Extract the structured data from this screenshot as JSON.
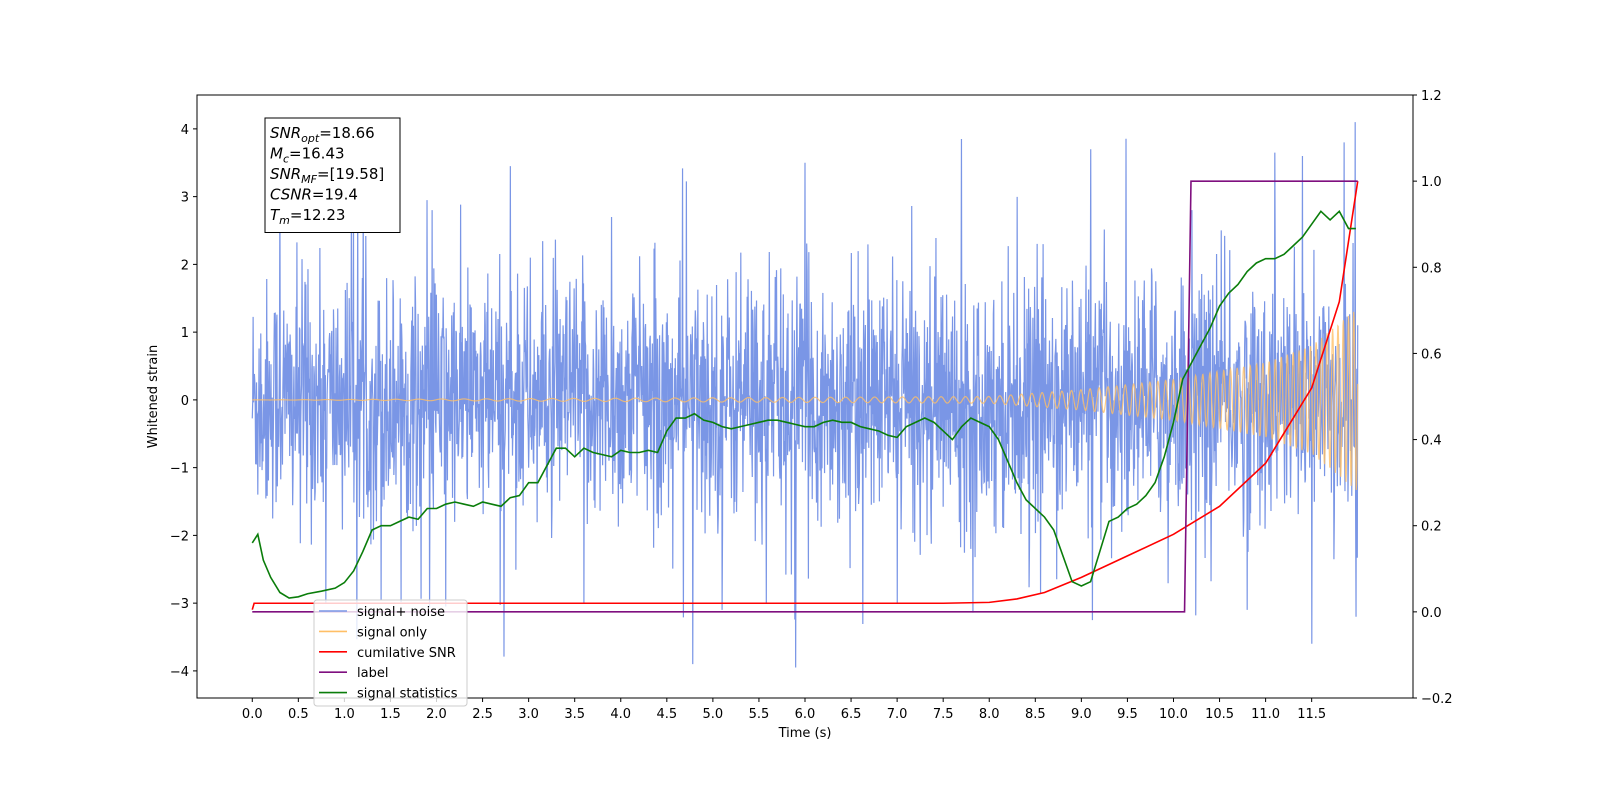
{
  "chart_data": {
    "type": "line",
    "title": "",
    "xlabel": "Time (s)",
    "ylabel": "Whitened strain",
    "ylabel_right": "",
    "xlim": [
      -0.6,
      12.6
    ],
    "ylim": [
      -4.4,
      4.5
    ],
    "ylim_right": [
      -0.2,
      1.2
    ],
    "x_ticks": [
      0.0,
      0.5,
      1.0,
      1.5,
      2.0,
      2.5,
      3.0,
      3.5,
      4.0,
      4.5,
      5.0,
      5.5,
      6.0,
      6.5,
      7.0,
      7.5,
      8.0,
      8.5,
      9.0,
      9.5,
      10.0,
      10.5,
      11.0,
      11.5
    ],
    "x_tick_labels": [
      "0.0",
      "0.5",
      "1.0",
      "1.5",
      "2.0",
      "2.5",
      "3.0",
      "3.5",
      "4.0",
      "4.5",
      "5.0",
      "5.5",
      "6.0",
      "6.5",
      "7.0",
      "7.5",
      "8.0",
      "8.5",
      "9.0",
      "9.5",
      "10.0",
      "10.5",
      "11.0",
      "11.5"
    ],
    "y_ticks": [
      -4,
      -3,
      -2,
      -1,
      0,
      1,
      2,
      3,
      4
    ],
    "y_tick_labels": [
      "−4",
      "−3",
      "−2",
      "−1",
      "0",
      "1",
      "2",
      "3",
      "4"
    ],
    "y_ticks_right": [
      -0.2,
      0.0,
      0.2,
      0.4,
      0.6,
      0.8,
      1.0,
      1.2
    ],
    "y_tick_labels_right": [
      "−0.2",
      "0.0",
      "0.2",
      "0.4",
      "0.6",
      "0.8",
      "1.0",
      "1.2"
    ],
    "grid": false,
    "legend_position": "lower-left",
    "annotation_box": {
      "lines": [
        {
          "base": "SNR",
          "sub": "opt",
          "rest": "=18.66"
        },
        {
          "base": "M",
          "sub": "c",
          "rest": "=16.43"
        },
        {
          "base": "SNR",
          "sub": "MF",
          "rest": "=[19.58]"
        },
        {
          "base": "CSNR",
          "sub": "",
          "rest": "=19.4"
        },
        {
          "base": "T",
          "sub": "m",
          "rest": "=12.23"
        }
      ]
    },
    "series": [
      {
        "name": "signal+ noise",
        "axis": "left",
        "color": "#7a96e6",
        "style": "noise",
        "x_range": [
          0.0,
          12.0
        ],
        "envelope_typical": [
          -1.6,
          1.6
        ],
        "spikes": [
          {
            "x": 0.3,
            "y": 3.25
          },
          {
            "x": 1.1,
            "y": 3.1
          },
          {
            "x": 1.95,
            "y": 2.8
          },
          {
            "x": 2.8,
            "y": 3.45
          },
          {
            "x": 3.9,
            "y": 2.7
          },
          {
            "x": 5.1,
            "y": 2.7
          },
          {
            "x": 6.0,
            "y": 3.5
          },
          {
            "x": 7.7,
            "y": 3.85
          },
          {
            "x": 9.1,
            "y": 3.7
          },
          {
            "x": 10.2,
            "y": 2.8
          },
          {
            "x": 11.1,
            "y": 3.65
          },
          {
            "x": 11.4,
            "y": 3.6
          },
          {
            "x": 11.85,
            "y": 3.8
          },
          {
            "x": 11.97,
            "y": 4.1
          },
          {
            "x": 0.8,
            "y": -3.0
          },
          {
            "x": 1.4,
            "y": -2.95
          },
          {
            "x": 2.1,
            "y": -3.05
          },
          {
            "x": 3.6,
            "y": -3.0
          },
          {
            "x": 4.78,
            "y": -3.9
          },
          {
            "x": 5.1,
            "y": -3.1
          },
          {
            "x": 5.58,
            "y": -3.0
          },
          {
            "x": 5.9,
            "y": -3.95
          },
          {
            "x": 7.0,
            "y": -3.0
          },
          {
            "x": 9.12,
            "y": -3.25
          },
          {
            "x": 10.8,
            "y": -3.1
          },
          {
            "x": 11.5,
            "y": -3.6
          },
          {
            "x": 11.98,
            "y": -3.2
          }
        ]
      },
      {
        "name": "signal only",
        "axis": "left",
        "color": "#ffbf66",
        "style": "chirp",
        "x_range": [
          0.0,
          12.0
        ],
        "amplitude_points": [
          [
            0.0,
            0.0
          ],
          [
            8.0,
            0.05
          ],
          [
            9.0,
            0.15
          ],
          [
            10.0,
            0.3
          ],
          [
            11.0,
            0.55
          ],
          [
            11.5,
            0.8
          ],
          [
            12.0,
            1.35
          ]
        ]
      },
      {
        "name": "cumilative SNR",
        "axis": "right",
        "color": "#ff0000",
        "x": [
          0.0,
          0.02,
          2.0,
          4.0,
          6.0,
          7.5,
          8.0,
          8.3,
          8.6,
          9.0,
          9.5,
          10.0,
          10.5,
          11.0,
          11.5,
          11.8,
          12.0
        ],
        "y": [
          0.005,
          0.02,
          0.02,
          0.02,
          0.02,
          0.02,
          0.022,
          0.03,
          0.045,
          0.08,
          0.13,
          0.18,
          0.245,
          0.345,
          0.52,
          0.72,
          1.0
        ]
      },
      {
        "name": "label",
        "axis": "right",
        "color": "#7f0f7f",
        "x": [
          0.0,
          10.12,
          10.19,
          12.0
        ],
        "y": [
          0.0,
          0.0,
          1.0,
          1.0
        ]
      },
      {
        "name": "signal statistics",
        "axis": "right",
        "color": "#0a7d0a",
        "x": [
          0.0,
          0.06,
          0.12,
          0.2,
          0.3,
          0.4,
          0.5,
          0.6,
          0.75,
          0.9,
          1.0,
          1.1,
          1.2,
          1.3,
          1.4,
          1.5,
          1.6,
          1.7,
          1.8,
          1.9,
          2.0,
          2.1,
          2.2,
          2.3,
          2.4,
          2.5,
          2.6,
          2.7,
          2.8,
          2.9,
          3.0,
          3.1,
          3.2,
          3.3,
          3.4,
          3.5,
          3.6,
          3.7,
          3.8,
          3.9,
          4.0,
          4.1,
          4.2,
          4.3,
          4.4,
          4.5,
          4.6,
          4.7,
          4.8,
          4.9,
          5.0,
          5.1,
          5.2,
          5.3,
          5.4,
          5.5,
          5.6,
          5.7,
          5.8,
          5.9,
          6.0,
          6.1,
          6.2,
          6.3,
          6.4,
          6.5,
          6.6,
          6.7,
          6.8,
          6.9,
          7.0,
          7.1,
          7.2,
          7.3,
          7.4,
          7.5,
          7.6,
          7.7,
          7.8,
          7.9,
          8.0,
          8.1,
          8.2,
          8.3,
          8.4,
          8.5,
          8.6,
          8.7,
          8.8,
          8.9,
          9.0,
          9.1,
          9.2,
          9.3,
          9.4,
          9.5,
          9.6,
          9.7,
          9.8,
          9.9,
          10.0,
          10.1,
          10.2,
          10.3,
          10.4,
          10.5,
          10.6,
          10.7,
          10.8,
          10.9,
          11.0,
          11.1,
          11.2,
          11.3,
          11.4,
          11.5,
          11.6,
          11.7,
          11.8,
          11.9,
          11.98
        ],
        "y": [
          0.16,
          0.18,
          0.12,
          0.08,
          0.045,
          0.032,
          0.035,
          0.042,
          0.048,
          0.055,
          0.068,
          0.095,
          0.14,
          0.19,
          0.2,
          0.2,
          0.21,
          0.22,
          0.215,
          0.24,
          0.24,
          0.25,
          0.255,
          0.25,
          0.245,
          0.255,
          0.25,
          0.245,
          0.265,
          0.27,
          0.3,
          0.3,
          0.34,
          0.38,
          0.38,
          0.36,
          0.38,
          0.37,
          0.365,
          0.36,
          0.375,
          0.37,
          0.37,
          0.375,
          0.37,
          0.42,
          0.45,
          0.45,
          0.46,
          0.445,
          0.44,
          0.43,
          0.425,
          0.43,
          0.435,
          0.44,
          0.445,
          0.445,
          0.44,
          0.435,
          0.43,
          0.43,
          0.44,
          0.445,
          0.44,
          0.44,
          0.43,
          0.425,
          0.42,
          0.41,
          0.405,
          0.43,
          0.44,
          0.45,
          0.44,
          0.42,
          0.4,
          0.43,
          0.45,
          0.44,
          0.43,
          0.4,
          0.35,
          0.3,
          0.26,
          0.24,
          0.22,
          0.19,
          0.13,
          0.07,
          0.06,
          0.07,
          0.14,
          0.21,
          0.22,
          0.24,
          0.25,
          0.27,
          0.3,
          0.36,
          0.44,
          0.54,
          0.58,
          0.62,
          0.66,
          0.71,
          0.74,
          0.76,
          0.79,
          0.81,
          0.82,
          0.82,
          0.83,
          0.85,
          0.87,
          0.9,
          0.93,
          0.91,
          0.93,
          0.89,
          0.89
        ]
      }
    ]
  }
}
